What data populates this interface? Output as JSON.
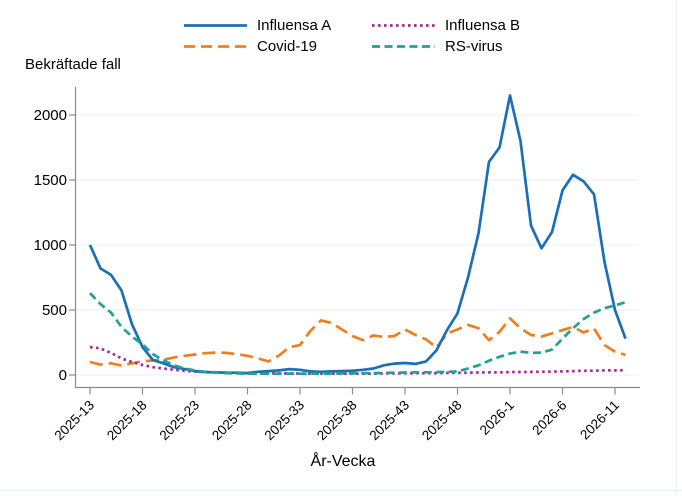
{
  "legend": {
    "items": [
      {
        "label": "Influensa A",
        "color": "#1b6fb5",
        "dash": "solid"
      },
      {
        "label": "Influensa B",
        "color": "#a32a94",
        "dash": "dot"
      },
      {
        "label": "Covid-19",
        "color": "#f07d1e",
        "dash": "long-dash"
      },
      {
        "label": "RS-virus",
        "color": "#1fa294",
        "dash": "dash"
      }
    ]
  },
  "chart_data": {
    "type": "line",
    "title": "",
    "ylabel": "Bekräftade fall",
    "xlabel": "År-Vecka",
    "ylim": [
      0,
      2200
    ],
    "yticks": [
      0,
      500,
      1000,
      1500,
      2000
    ],
    "grid": "horizontal",
    "legend_position": "top",
    "x": [
      "2025-13",
      "2025-14",
      "2025-15",
      "2025-16",
      "2025-17",
      "2025-18",
      "2025-19",
      "2025-20",
      "2025-21",
      "2025-22",
      "2025-23",
      "2025-24",
      "2025-25",
      "2025-26",
      "2025-27",
      "2025-28",
      "2025-29",
      "2025-30",
      "2025-31",
      "2025-32",
      "2025-33",
      "2025-34",
      "2025-35",
      "2025-36",
      "2025-37",
      "2025-38",
      "2025-39",
      "2025-40",
      "2025-41",
      "2025-42",
      "2025-43",
      "2025-44",
      "2025-45",
      "2025-46",
      "2025-47",
      "2025-48",
      "2025-49",
      "2025-50",
      "2025-51",
      "2025-52",
      "2026-1",
      "2026-2",
      "2026-3",
      "2026-4",
      "2026-5",
      "2026-6",
      "2026-7",
      "2026-8",
      "2026-9",
      "2026-10",
      "2026-11",
      "2026-12"
    ],
    "xtick_labels": [
      "2025-13",
      "2025-18",
      "2025-23",
      "2025-28",
      "2025-33",
      "2025-38",
      "2025-43",
      "2025-48",
      "2026-1",
      "2026-6",
      "2026-11"
    ],
    "series": [
      {
        "name": "Influensa A",
        "color": "#1b6fb5",
        "dash": "solid",
        "values": [
          1000,
          820,
          770,
          650,
          390,
          215,
          115,
          90,
          60,
          45,
          30,
          22,
          20,
          18,
          18,
          15,
          25,
          30,
          35,
          45,
          40,
          28,
          25,
          28,
          30,
          33,
          40,
          50,
          75,
          88,
          92,
          85,
          105,
          190,
          345,
          475,
          750,
          1090,
          1640,
          1750,
          2150,
          1800,
          1150,
          975,
          1100,
          1420,
          1540,
          1490,
          1390,
          870,
          500,
          280
        ]
      },
      {
        "name": "Covid-19",
        "color": "#f07d1e",
        "dash": "long-dash",
        "values": [
          100,
          80,
          90,
          72,
          90,
          105,
          112,
          118,
          135,
          148,
          158,
          168,
          172,
          170,
          160,
          148,
          128,
          105,
          150,
          215,
          230,
          340,
          420,
          400,
          350,
          300,
          268,
          305,
          292,
          300,
          350,
          308,
          275,
          210,
          320,
          350,
          385,
          360,
          268,
          332,
          435,
          360,
          308,
          295,
          320,
          345,
          370,
          328,
          358,
          230,
          180,
          155
        ]
      },
      {
        "name": "Influensa B",
        "color": "#a32a94",
        "dash": "dot",
        "values": [
          215,
          205,
          170,
          128,
          100,
          78,
          60,
          50,
          40,
          32,
          27,
          23,
          20,
          18,
          15,
          14,
          13,
          12,
          12,
          12,
          11,
          10,
          10,
          10,
          10,
          10,
          10,
          11,
          12,
          12,
          13,
          14,
          14,
          15,
          16,
          17,
          18,
          19,
          20,
          21,
          22,
          23,
          24,
          25,
          26,
          28,
          30,
          32,
          33,
          35,
          35,
          38
        ]
      },
      {
        "name": "RS-virus",
        "color": "#1fa294",
        "dash": "dash",
        "values": [
          630,
          545,
          480,
          370,
          295,
          235,
          160,
          112,
          75,
          50,
          35,
          25,
          18,
          15,
          12,
          10,
          10,
          10,
          10,
          10,
          10,
          10,
          10,
          11,
          12,
          13,
          14,
          15,
          16,
          18,
          19,
          20,
          21,
          22,
          24,
          28,
          50,
          75,
          110,
          140,
          165,
          180,
          170,
          172,
          195,
          280,
          360,
          430,
          480,
          515,
          535,
          560
        ]
      }
    ]
  }
}
